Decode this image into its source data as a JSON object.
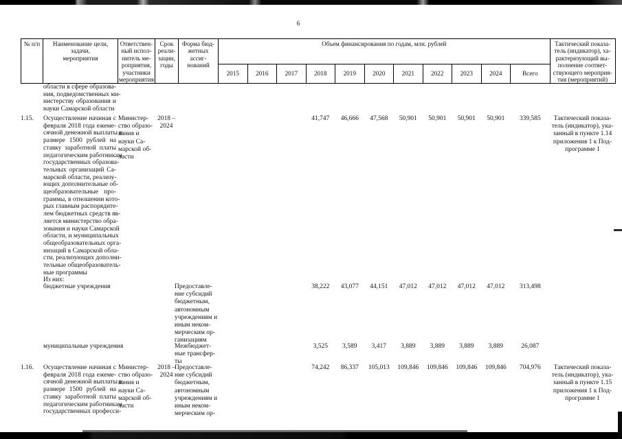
{
  "page": {
    "number": "6"
  },
  "header": {
    "num": [
      "№ п/п"
    ],
    "name": [
      "Наименование цели, задачи,",
      "мероприятия"
    ],
    "responsible": [
      "Ответствен-",
      "ный испол-",
      "нитель ме-",
      "роприятия,",
      "участники",
      "мероприятия"
    ],
    "term": [
      "Срок",
      "реали-",
      "зации,",
      "годы"
    ],
    "form": [
      "Форма бюд-",
      "жетных ассиг-",
      "нований"
    ],
    "finance_title": "Объем финансирования по годам, млн. рублей",
    "years": [
      "2015",
      "2016",
      "2017",
      "2018",
      "2019",
      "2020",
      "2021",
      "2022",
      "2023",
      "2024"
    ],
    "total_label": "Всего",
    "indicator": [
      "Тактический показа-",
      "тель (индикатор), ха-",
      "рактеризующий вы-",
      "полнение соответ-",
      "ствующего мероприя-",
      "тия (мероприятий)"
    ]
  },
  "rows": [
    {
      "num": "",
      "name_paras": [
        [
          "области в сфере образова-",
          "ния, подведомственных ми-",
          "нистерству образования и",
          "науки Самарской области"
        ]
      ],
      "responsible": [],
      "term": [],
      "form": [],
      "values": [
        "",
        "",
        "",
        "",
        "",
        "",
        "",
        "",
        "",
        "",
        ""
      ],
      "indicator": []
    },
    {
      "num": "1.15.",
      "name_paras": [
        [
          "Осуществление начиная с",
          "февраля 2018 года ежеме-",
          "сячной денежной выплаты в",
          "размере 1500 рублей на",
          "ставку заработной платы",
          "педагогическим работникам",
          "государственных образова-",
          "тельных организаций Са-",
          "марской области, реализу-",
          "ющих дополнительные об-",
          "щеобразовательные про-",
          "граммы, в отношении кото-",
          "рых главным распорядите-",
          "лем бюджетных средств яв-",
          "ляется министерство обра-",
          "зования и науки Самарской",
          "области, и муниципальных",
          "общеобразовательных орга-",
          "низаций в Самарской обла-",
          "сти, реализующих дополни-",
          "тельные общеобразователь-",
          "ные программы"
        ],
        [
          "Из них:"
        ]
      ],
      "responsible": [
        "Министер-",
        "ство образо-",
        "вания и",
        "науки Са-",
        "марской об-",
        "ласти"
      ],
      "term": [
        "2018 –",
        "2024"
      ],
      "form": [],
      "values": [
        "",
        "",
        "",
        "41,747",
        "46,666",
        "47,568",
        "50,901",
        "50,901",
        "50,901",
        "50,901",
        "339,585"
      ],
      "indicator": [
        "Тактический показа-",
        "тель (индикатор), ука-",
        "занный в пункте 1.14",
        "приложения 1 к Под-",
        "программе 1"
      ]
    },
    {
      "num": "",
      "name_paras": [
        [
          "бюджетные учреждения"
        ]
      ],
      "responsible": [],
      "term": [],
      "form": [
        "Предоставле-",
        "ние субсидий",
        "бюджетным,",
        "автономным",
        "учреждениям и",
        "иным неком-",
        "мерческим ор-",
        "ганизациям"
      ],
      "values": [
        "",
        "",
        "",
        "38,222",
        "43,077",
        "44,151",
        "47,012",
        "47,012",
        "47,012",
        "47,012",
        "313,498"
      ],
      "indicator": []
    },
    {
      "num": "",
      "name_paras": [
        [
          "муниципальные учреждения"
        ]
      ],
      "responsible": [],
      "term": [],
      "form": [
        "Межбюджет-",
        "ные трансфер-",
        "ты"
      ],
      "values": [
        "",
        "",
        "",
        "3,525",
        "3,589",
        "3,417",
        "3,889",
        "3,889",
        "3,889",
        "3,889",
        "26,087"
      ],
      "indicator": []
    },
    {
      "num": "1.16.",
      "name_paras": [
        [
          "Осуществление начиная с",
          "февраля 2018 года ежеме-",
          "сячной денежной выплаты в",
          "размере 1500 рублей на",
          "ставку заработной платы",
          "педагогическим работникам",
          "государственных професси-"
        ]
      ],
      "responsible": [
        "Министер-",
        "ство образо-",
        "вания и",
        "науки Са-",
        "марской об-",
        "ласти"
      ],
      "term": [
        "2018 –",
        "2024"
      ],
      "form": [
        "Предоставле-",
        "ние субсидий",
        "бюджетным,",
        "автономным",
        "учреждениям и",
        "иным неком-",
        "мерческим ор-"
      ],
      "values": [
        "",
        "",
        "",
        "74,242",
        "86,337",
        "105,013",
        "109,846",
        "109,846",
        "109,846",
        "109,846",
        "704,976"
      ],
      "indicator": [
        "Тактический показа-",
        "тель (индикатор), ука-",
        "занный в пункте 1.15",
        "приложения 1 к Под-",
        "программе 1"
      ]
    }
  ]
}
